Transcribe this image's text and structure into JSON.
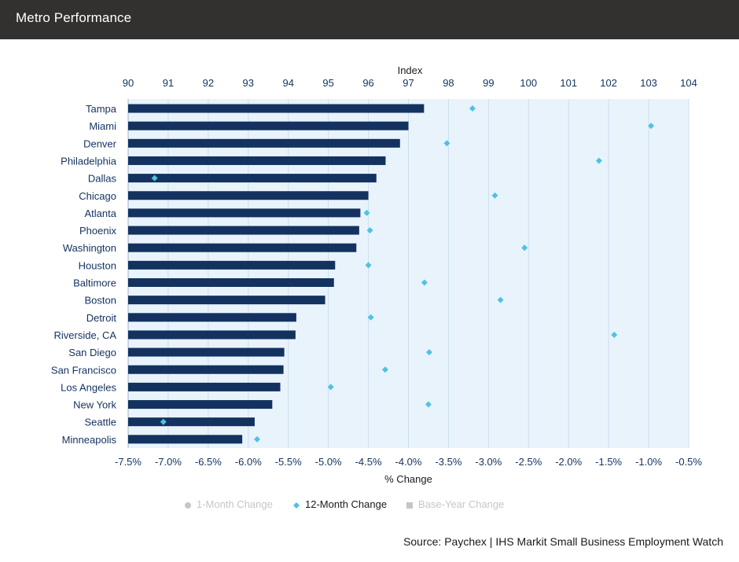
{
  "header": {
    "title": "Metro Performance"
  },
  "chart_data": {
    "type": "bar",
    "orientation": "horizontal",
    "top_axis": {
      "label": "Index",
      "min": 90,
      "max": 104,
      "ticks": [
        90,
        91,
        92,
        93,
        94,
        95,
        96,
        97,
        98,
        99,
        100,
        101,
        102,
        103,
        104
      ]
    },
    "bottom_axis": {
      "label": "% Change",
      "min": -7.5,
      "max": -0.5,
      "ticks": [
        -7.5,
        -7.0,
        -6.5,
        -6.0,
        -5.5,
        -5.0,
        -4.5,
        -4.0,
        -3.5,
        -3.0,
        -2.5,
        -2.0,
        -1.5,
        -1.0,
        -0.5
      ],
      "tick_labels": [
        "-7.5%",
        "-7.0%",
        "-6.5%",
        "-6.0%",
        "-5.5%",
        "-5.0%",
        "-4.5%",
        "-4.0%",
        "-3.5%",
        "-3.0%",
        "-2.5%",
        "-2.0%",
        "-1.5%",
        "-1.0%",
        "-0.5%"
      ]
    },
    "categories": [
      "Tampa",
      "Miami",
      "Denver",
      "Philadelphia",
      "Dallas",
      "Chicago",
      "Atlanta",
      "Phoenix",
      "Washington",
      "Houston",
      "Baltimore",
      "Boston",
      "Detroit",
      "Riverside, CA",
      "San Diego",
      "San Francisco",
      "Los Angeles",
      "New York",
      "Seattle",
      "Minneapolis"
    ],
    "series": [
      {
        "name": "Base-Year Change",
        "axis": "index",
        "mark": "bar",
        "values": [
          97.39,
          97.0,
          96.79,
          96.43,
          96.2,
          96.0,
          95.8,
          95.77,
          95.7,
          95.17,
          95.14,
          94.92,
          94.2,
          94.18,
          93.9,
          93.88,
          93.8,
          93.6,
          93.16,
          92.85
        ]
      },
      {
        "name": "12-Month Change",
        "axis": "pct",
        "mark": "diamond",
        "values": [
          -3.2,
          -0.97,
          -3.52,
          -1.62,
          -7.17,
          -2.92,
          -4.52,
          -4.48,
          -2.55,
          -4.5,
          -3.8,
          -2.85,
          -4.47,
          -1.43,
          -3.74,
          -4.29,
          -4.97,
          -3.75,
          -7.06,
          -5.89
        ]
      }
    ],
    "grid": true,
    "legend": {
      "position": "bottom",
      "items": [
        {
          "label": "1-Month Change",
          "marker": "circle",
          "active": false
        },
        {
          "label": "12-Month Change",
          "marker": "diamond",
          "active": true
        },
        {
          "label": "Base-Year Change",
          "marker": "square",
          "active": false
        }
      ]
    }
  },
  "colors": {
    "bar": "#13325f",
    "marker": "#4cc3e3",
    "plot_band": "#e9f3fc",
    "grid": "#ccdeed",
    "axis_text": "#13325f",
    "legend_inactive": "#c6c6c6"
  },
  "source": "Source: Paychex | IHS Markit Small Business Employment Watch"
}
